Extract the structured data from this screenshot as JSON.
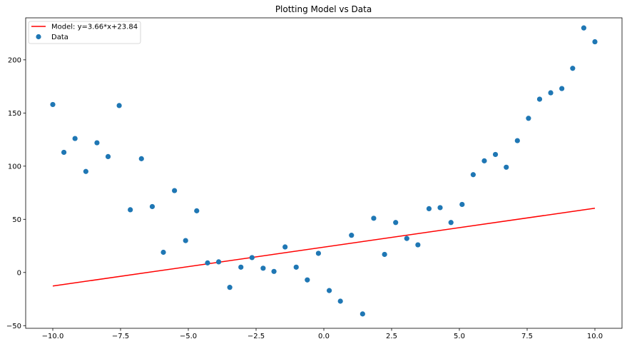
{
  "chart_data": {
    "type": "scatter",
    "title": "Plotting Model vs Data",
    "xlabel": "",
    "ylabel": "",
    "xlim": [
      -11.0,
      11.0
    ],
    "ylim": [
      -52.5,
      239.5
    ],
    "xticks": [
      -10.0,
      -7.5,
      -5.0,
      -2.5,
      0.0,
      2.5,
      5.0,
      7.5,
      10.0
    ],
    "xtick_labels": [
      "−10.0",
      "−7.5",
      "−5.0",
      "−2.5",
      "0.0",
      "2.5",
      "5.0",
      "7.5",
      "10.0"
    ],
    "yticks": [
      -50,
      0,
      50,
      100,
      150,
      200
    ],
    "ytick_labels": [
      "−50",
      "0",
      "50",
      "100",
      "150",
      "200"
    ],
    "grid": false,
    "legend_position": "top-left",
    "series": [
      {
        "name": "Model: y=3.66*x+23.84",
        "kind": "line",
        "color": "#ff0000",
        "x": [
          -10.0,
          10.0
        ],
        "y": [
          -12.76,
          60.44
        ]
      },
      {
        "name": "Data",
        "kind": "scatter",
        "color": "#1f77b4",
        "x": [
          -10.0,
          -9.59,
          -9.18,
          -8.78,
          -8.37,
          -7.96,
          -7.55,
          -7.14,
          -6.73,
          -6.33,
          -5.92,
          -5.51,
          -5.1,
          -4.69,
          -4.29,
          -3.88,
          -3.47,
          -3.06,
          -2.65,
          -2.24,
          -1.84,
          -1.43,
          -1.02,
          -0.61,
          -0.2,
          0.2,
          0.61,
          1.02,
          1.43,
          1.84,
          2.24,
          2.65,
          3.06,
          3.47,
          3.88,
          4.29,
          4.69,
          5.1,
          5.51,
          5.92,
          6.33,
          6.73,
          7.14,
          7.55,
          7.96,
          8.37,
          8.78,
          9.18,
          9.59,
          10.0
        ],
        "y": [
          158,
          113,
          126,
          95,
          122,
          109,
          157,
          59,
          107,
          62,
          19,
          77,
          30,
          58,
          9,
          10,
          -14,
          5,
          14,
          4,
          1,
          24,
          5,
          -7,
          18,
          -17,
          -27,
          35,
          -39,
          51,
          17,
          47,
          32,
          26,
          60,
          61,
          47,
          64,
          92,
          105,
          111,
          99,
          124,
          145,
          163,
          169,
          173,
          192,
          230,
          217
        ]
      }
    ]
  }
}
